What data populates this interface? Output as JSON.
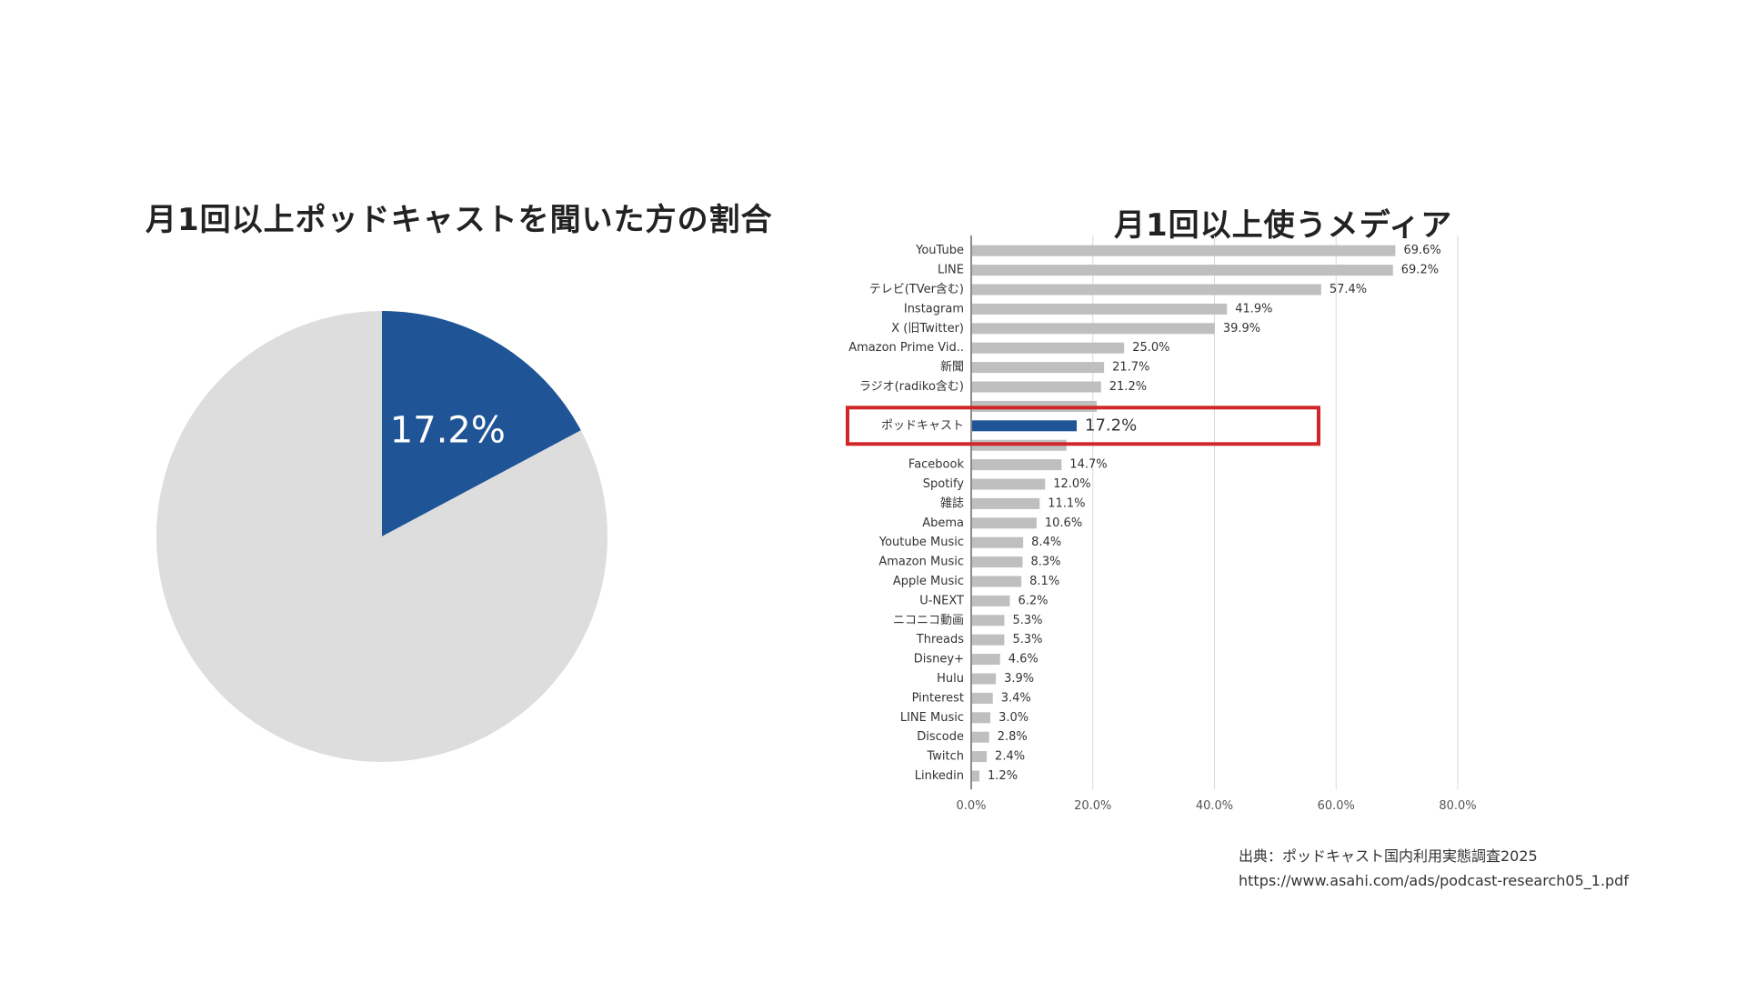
{
  "slide": {
    "pie_title": "月1回以上ポッドキャストを聞いた方の割合",
    "bar_title": "月1回以上使うメディア",
    "source_label": "出典：ポッドキャスト国内利用実態調査2025",
    "source_url": "https://www.asahi.com/ads/podcast-research05_1.pdf"
  },
  "colors": {
    "highlight": "#1f5596",
    "bar": "#bfbfbf",
    "pie_rest": "#dddddd",
    "box": "#d0262a"
  },
  "chart_data": [
    {
      "type": "pie",
      "title": "月1回以上ポッドキャストを聞いた方の割合",
      "slices": [
        {
          "label": "17.2%",
          "value": 17.2,
          "color": "#1f5596"
        },
        {
          "label": "",
          "value": 82.8,
          "color": "#dddddd"
        }
      ]
    },
    {
      "type": "bar",
      "orientation": "horizontal",
      "title": "月1回以上使うメディア",
      "highlight": "ポッドキャスト",
      "xlim": [
        0,
        80
      ],
      "xticks": [
        "0.0%",
        "20.0%",
        "40.0%",
        "60.0%",
        "80.0%"
      ],
      "grid": true,
      "categories": [
        "YouTube",
        "LINE",
        "テレビ(TVer含む)",
        "Instagram",
        "X (旧Twitter)",
        "Amazon Prime Vid..",
        "新聞",
        "ラジオ(radiko含む)",
        "",
        "ポッドキャスト",
        "",
        "Facebook",
        "Spotify",
        "雑誌",
        "Abema",
        "Youtube Music",
        "Amazon Music",
        "Apple Music",
        "U-NEXT",
        "ニコニコ動画",
        "Threads",
        "Disney+",
        "Hulu",
        "Pinterest",
        "LINE Music",
        "Discode",
        "Twitch",
        "Linkedin"
      ],
      "values": [
        69.6,
        69.2,
        57.4,
        41.9,
        39.9,
        25.0,
        21.7,
        21.2,
        20.5,
        17.2,
        15.5,
        14.7,
        12.0,
        11.1,
        10.6,
        8.4,
        8.3,
        8.1,
        6.2,
        5.3,
        5.3,
        4.6,
        3.9,
        3.4,
        3.0,
        2.8,
        2.4,
        1.2
      ],
      "value_labels": [
        "69.6%",
        "69.2%",
        "57.4%",
        "41.9%",
        "39.9%",
        "25.0%",
        "21.7%",
        "21.2%",
        "",
        "17.2%",
        "",
        "14.7%",
        "12.0%",
        "11.1%",
        "10.6%",
        "8.4%",
        "8.3%",
        "8.1%",
        "6.2%",
        "5.3%",
        "5.3%",
        "4.6%",
        "3.9%",
        "3.4%",
        "3.0%",
        "2.8%",
        "2.4%",
        "1.2%"
      ]
    }
  ]
}
